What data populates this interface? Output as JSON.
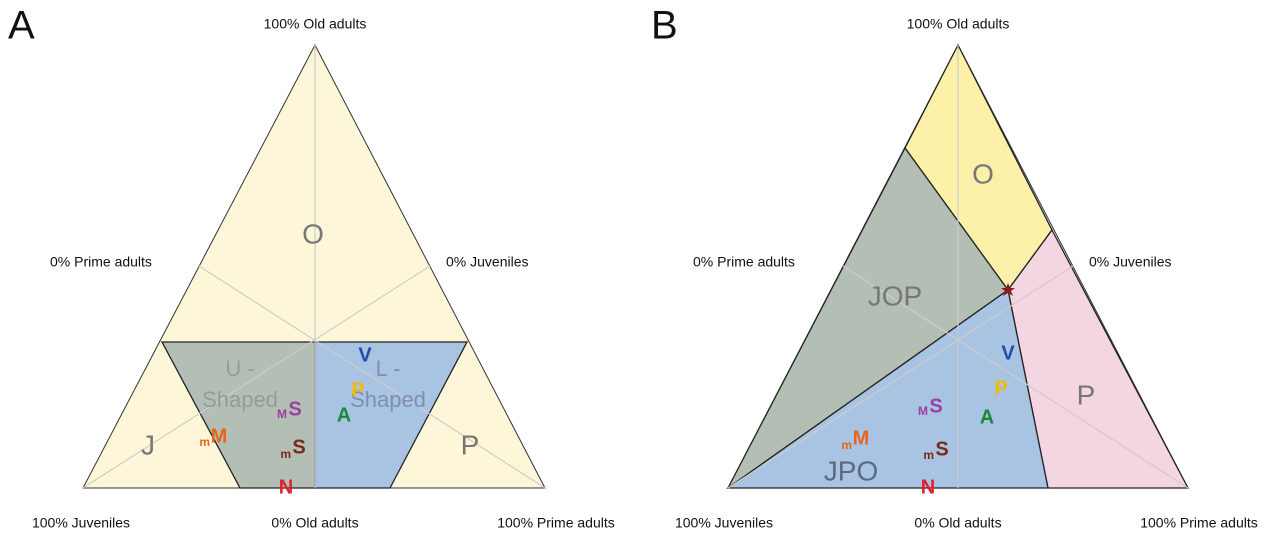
{
  "panels": [
    {
      "label": "A",
      "axis_labels": {
        "top": "100% Old adults",
        "left_mid": "0% Prime adults",
        "right_mid": "0% Juveniles",
        "bottom_left": "100% Juveniles",
        "bottom_mid": "0% Old adults",
        "bottom_right": "100% Prime adults"
      },
      "regions": [
        {
          "label": "O"
        },
        {
          "label": "J"
        },
        {
          "label": "P"
        },
        {
          "lines": [
            "U -",
            "Shaped"
          ]
        },
        {
          "lines": [
            "L -",
            "Shaped"
          ]
        }
      ],
      "points": [
        {
          "label": "V"
        },
        {
          "label": "P"
        },
        {
          "label": "A"
        },
        {
          "label": "S",
          "sub": "M"
        },
        {
          "label": "M",
          "sub": "m"
        },
        {
          "label": "S",
          "sub": "m"
        },
        {
          "label": "N"
        }
      ]
    },
    {
      "label": "B",
      "axis_labels": {
        "top": "100% Old adults",
        "left_mid": "0% Prime adults",
        "right_mid": "0% Juveniles",
        "bottom_left": "100% Juveniles",
        "bottom_mid": "0% Old adults",
        "bottom_right": "100% Prime adults"
      },
      "regions": [
        {
          "label": "O"
        },
        {
          "label": "JOP"
        },
        {
          "label": "P"
        },
        {
          "label": "JPO"
        }
      ],
      "points": [
        {
          "label": "V"
        },
        {
          "label": "P"
        },
        {
          "label": "A"
        },
        {
          "label": "S",
          "sub": "M"
        },
        {
          "label": "M",
          "sub": "m"
        },
        {
          "label": "S",
          "sub": "m"
        },
        {
          "label": "N"
        }
      ]
    }
  ]
}
